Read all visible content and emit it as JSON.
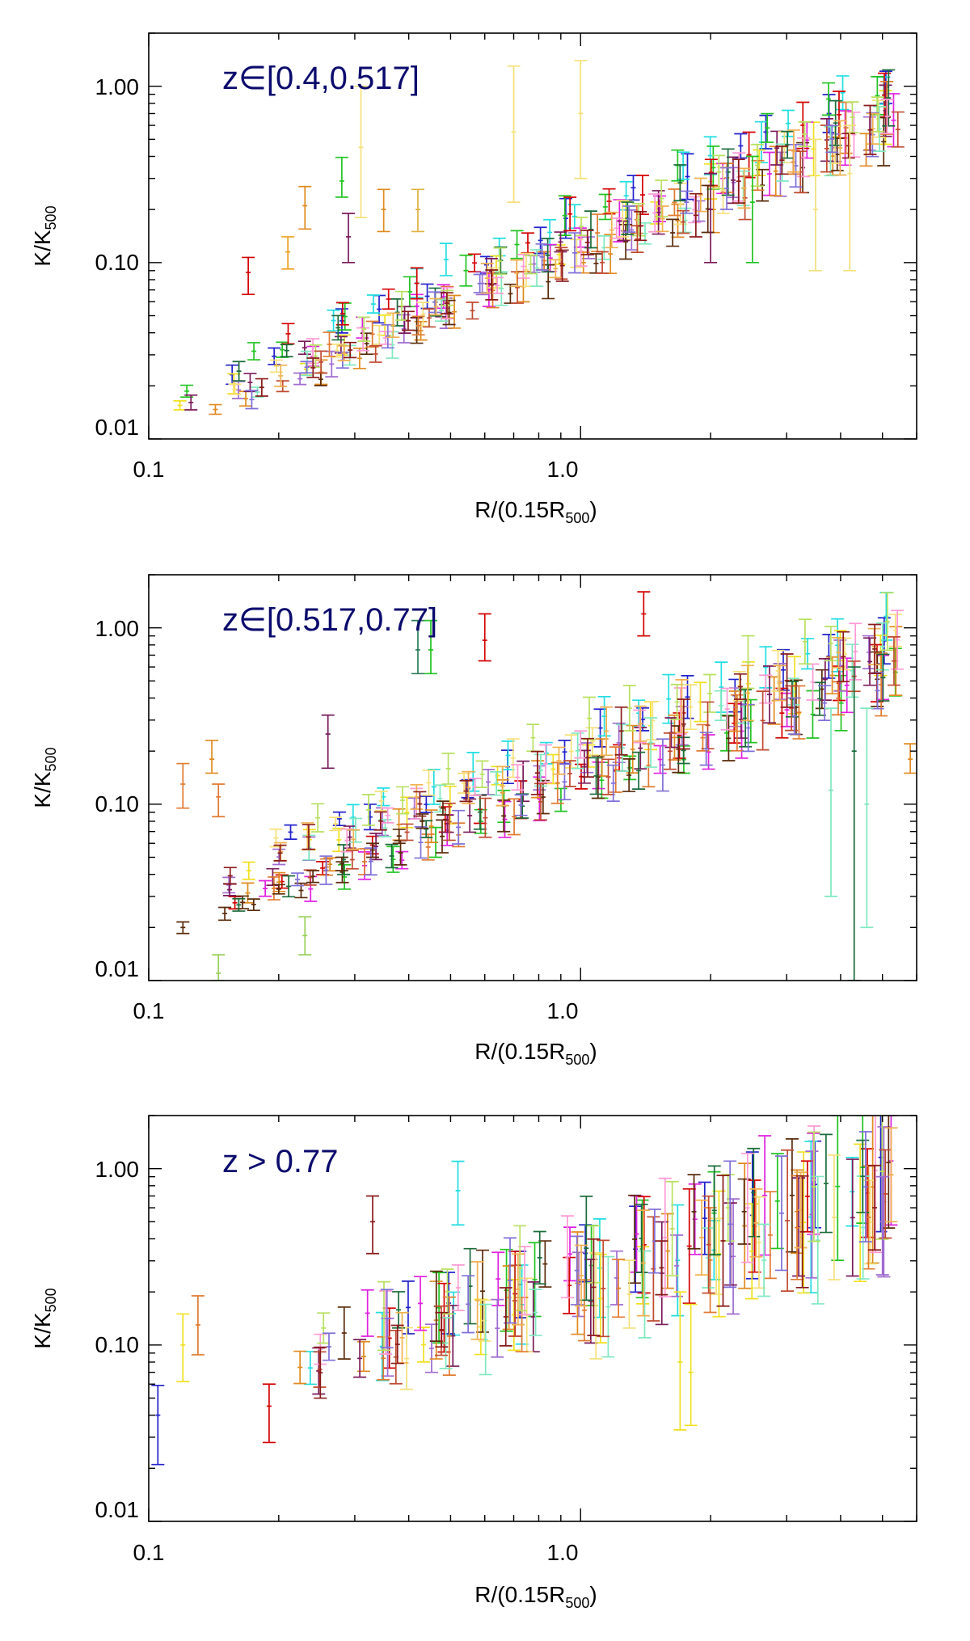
{
  "chart_data": [
    {
      "type": "scatter",
      "title": "z∈[0.4,0.517]",
      "xlabel_main": "R/(0.15R",
      "xlabel_sub": "500",
      "xlabel_end": ")",
      "ylabel_main": "K/K",
      "ylabel_sub": "500",
      "xscale": "log",
      "yscale": "log",
      "xlim": [
        0.1,
        6.0
      ],
      "ylim": [
        0.01,
        2.0
      ],
      "xticks": [
        {
          "v": 0.1,
          "label": "0.1"
        },
        {
          "v": 1.0,
          "label": "1.0"
        }
      ],
      "yticks": [
        {
          "v": 0.01,
          "label": "0.01"
        },
        {
          "v": 0.1,
          "label": "0.10"
        },
        {
          "v": 1.0,
          "label": "1.00"
        }
      ],
      "trend": {
        "x0": 0.11,
        "x1": 6.0,
        "y0": 0.014,
        "y1": 0.9,
        "scatter": 1.45,
        "errscale": 1.25
      },
      "n_profiles": 20,
      "points_per_profile": 14,
      "outliers": [
        {
          "x": 0.17,
          "y": 0.088,
          "lo": 0.066,
          "hi": 0.107,
          "color": "#d40000"
        },
        {
          "x": 0.21,
          "y": 0.115,
          "lo": 0.092,
          "hi": 0.14,
          "color": "#f0a020"
        },
        {
          "x": 0.23,
          "y": 0.21,
          "lo": 0.155,
          "hi": 0.27,
          "color": "#e08a20"
        },
        {
          "x": 0.28,
          "y": 0.29,
          "lo": 0.235,
          "hi": 0.395,
          "color": "#22c322"
        },
        {
          "x": 0.29,
          "y": 0.14,
          "lo": 0.1,
          "hi": 0.19,
          "color": "#7a1a5a"
        },
        {
          "x": 0.31,
          "y": 0.45,
          "lo": 0.18,
          "hi": 1.0,
          "color": "#f5e07a"
        },
        {
          "x": 0.35,
          "y": 0.2,
          "lo": 0.15,
          "hi": 0.26,
          "color": "#e08a20"
        },
        {
          "x": 0.42,
          "y": 0.2,
          "lo": 0.15,
          "hi": 0.26,
          "color": "#e0b040"
        },
        {
          "x": 0.7,
          "y": 0.55,
          "lo": 0.22,
          "hi": 1.3,
          "color": "#f5e07a"
        },
        {
          "x": 1.0,
          "y": 0.7,
          "lo": 0.3,
          "hi": 1.4,
          "color": "#f5e07a"
        },
        {
          "x": 2.0,
          "y": 0.2,
          "lo": 0.1,
          "hi": 0.32,
          "color": "#7a1a5a"
        },
        {
          "x": 2.5,
          "y": 0.22,
          "lo": 0.1,
          "hi": 0.4,
          "color": "#22c322"
        },
        {
          "x": 3.5,
          "y": 0.2,
          "lo": 0.09,
          "hi": 0.5,
          "color": "#f5e07a"
        },
        {
          "x": 4.2,
          "y": 0.32,
          "lo": 0.09,
          "hi": 0.6,
          "color": "#f5e07a"
        }
      ]
    },
    {
      "type": "scatter",
      "title": "z∈[0.517,0.77]",
      "xlabel_main": "R/(0.15R",
      "xlabel_sub": "500",
      "xlabel_end": ")",
      "ylabel_main": "K/K",
      "ylabel_sub": "500",
      "xscale": "log",
      "yscale": "log",
      "xlim": [
        0.1,
        6.0
      ],
      "ylim": [
        0.01,
        2.0
      ],
      "xticks": [
        {
          "v": 0.1,
          "label": "0.1"
        },
        {
          "v": 1.0,
          "label": "1.0"
        }
      ],
      "yticks": [
        {
          "v": 0.01,
          "label": "0.01"
        },
        {
          "v": 0.1,
          "label": "0.10"
        },
        {
          "v": 1.0,
          "label": "1.00"
        }
      ],
      "trend": {
        "x0": 0.13,
        "x1": 6.0,
        "y0": 0.03,
        "y1": 0.8,
        "scatter": 1.55,
        "errscale": 1.3
      },
      "n_profiles": 20,
      "points_per_profile": 14,
      "outliers": [
        {
          "x": 0.12,
          "y": 0.02,
          "lo": 0.0185,
          "hi": 0.0215,
          "color": "#5a2a0a"
        },
        {
          "x": 0.15,
          "y": 0.024,
          "lo": 0.022,
          "hi": 0.026,
          "color": "#5a2a0a"
        },
        {
          "x": 0.175,
          "y": 0.027,
          "lo": 0.025,
          "hi": 0.029,
          "color": "#5a2a0a"
        },
        {
          "x": 0.2,
          "y": 0.033,
          "lo": 0.031,
          "hi": 0.035,
          "color": "#5a2a0a"
        },
        {
          "x": 0.24,
          "y": 0.039,
          "lo": 0.036,
          "hi": 0.042,
          "color": "#5a2a0a"
        },
        {
          "x": 0.28,
          "y": 0.046,
          "lo": 0.042,
          "hi": 0.05,
          "color": "#5a2a0a"
        },
        {
          "x": 0.33,
          "y": 0.055,
          "lo": 0.05,
          "hi": 0.06,
          "color": "#5a2a0a"
        },
        {
          "x": 0.38,
          "y": 0.066,
          "lo": 0.06,
          "hi": 0.072,
          "color": "#5a2a0a"
        },
        {
          "x": 0.43,
          "y": 0.08,
          "lo": 0.073,
          "hi": 0.088,
          "color": "#5a2a0a"
        },
        {
          "x": 0.48,
          "y": 0.095,
          "lo": 0.087,
          "hi": 0.104,
          "color": "#5a2a0a"
        },
        {
          "x": 0.12,
          "y": 0.13,
          "lo": 0.095,
          "hi": 0.17,
          "color": "#e07a30"
        },
        {
          "x": 0.14,
          "y": 0.18,
          "lo": 0.15,
          "hi": 0.23,
          "color": "#e08a20"
        },
        {
          "x": 0.145,
          "y": 0.11,
          "lo": 0.085,
          "hi": 0.13,
          "color": "#e07a30"
        },
        {
          "x": 0.145,
          "y": 0.011,
          "lo": 0.009,
          "hi": 0.014,
          "color": "#9ad05a"
        },
        {
          "x": 0.23,
          "y": 0.018,
          "lo": 0.014,
          "hi": 0.023,
          "color": "#9ad05a"
        },
        {
          "x": 0.26,
          "y": 0.25,
          "lo": 0.16,
          "hi": 0.32,
          "color": "#7a1a5a"
        },
        {
          "x": 0.42,
          "y": 0.75,
          "lo": 0.55,
          "hi": 1.1,
          "color": "#2e7d5a"
        },
        {
          "x": 0.45,
          "y": 0.75,
          "lo": 0.55,
          "hi": 1.1,
          "color": "#22c322"
        },
        {
          "x": 0.6,
          "y": 0.85,
          "lo": 0.65,
          "hi": 1.2,
          "color": "#d40000"
        },
        {
          "x": 1.4,
          "y": 1.2,
          "lo": 0.9,
          "hi": 1.6,
          "color": "#d40000"
        },
        {
          "x": 3.8,
          "y": 0.12,
          "lo": 0.03,
          "hi": 0.35,
          "color": "#80e8c0"
        },
        {
          "x": 4.3,
          "y": 0.2,
          "lo": 0.008,
          "hi": 0.6,
          "color": "#1a6b3a"
        },
        {
          "x": 4.6,
          "y": 0.1,
          "lo": 0.02,
          "hi": 0.35,
          "color": "#80e8c0"
        },
        {
          "x": 5.8,
          "y": 0.18,
          "lo": 0.15,
          "hi": 0.22,
          "color": "#e08a20"
        }
      ]
    },
    {
      "type": "scatter",
      "title": "z > 0.77",
      "xlabel_main": "R/(0.15R",
      "xlabel_sub": "500",
      "xlabel_end": ")",
      "ylabel_main": "K/K",
      "ylabel_sub": "500",
      "xscale": "log",
      "yscale": "log",
      "xlim": [
        0.1,
        6.0
      ],
      "ylim": [
        0.01,
        2.0
      ],
      "xticks": [
        {
          "v": 0.1,
          "label": "0.1"
        },
        {
          "v": 1.0,
          "label": "1.0"
        }
      ],
      "yticks": [
        {
          "v": 0.01,
          "label": "0.01"
        },
        {
          "v": 0.1,
          "label": "0.10"
        },
        {
          "v": 1.0,
          "label": "1.00"
        }
      ],
      "trend": {
        "x0": 0.2,
        "x1": 6.0,
        "y0": 0.07,
        "y1": 0.9,
        "scatter": 1.45,
        "errscale": 1.9
      },
      "n_profiles": 20,
      "points_per_profile": 9,
      "outliers": [
        {
          "x": 0.105,
          "y": 0.04,
          "lo": 0.021,
          "hi": 0.059,
          "color": "#2222cc"
        },
        {
          "x": 0.12,
          "y": 0.1,
          "lo": 0.062,
          "hi": 0.15,
          "color": "#f0e020"
        },
        {
          "x": 0.13,
          "y": 0.13,
          "lo": 0.088,
          "hi": 0.19,
          "color": "#e07a30"
        },
        {
          "x": 0.19,
          "y": 0.045,
          "lo": 0.028,
          "hi": 0.06,
          "color": "#d40000"
        },
        {
          "x": 0.33,
          "y": 0.5,
          "lo": 0.33,
          "hi": 0.7,
          "color": "#8b1a1a"
        },
        {
          "x": 0.52,
          "y": 0.75,
          "lo": 0.48,
          "hi": 1.1,
          "color": "#22dde0"
        },
        {
          "x": 1.7,
          "y": 0.08,
          "lo": 0.033,
          "hi": 0.2,
          "color": "#f0e020"
        },
        {
          "x": 1.8,
          "y": 0.07,
          "lo": 0.035,
          "hi": 0.17,
          "color": "#f0e020"
        },
        {
          "x": 5.0,
          "y": 0.5,
          "lo": 0.25,
          "hi": 0.9,
          "color": "#9f6bd0"
        }
      ]
    }
  ]
}
